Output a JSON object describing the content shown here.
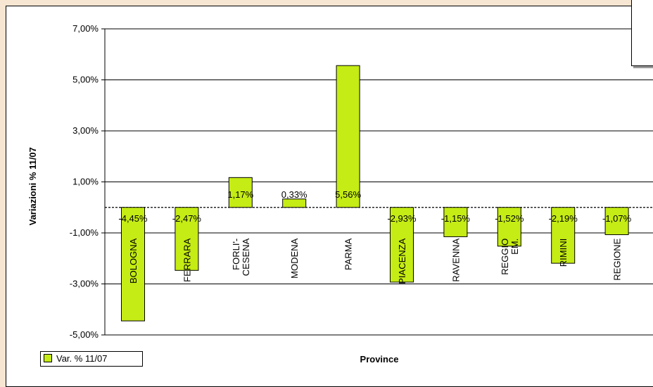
{
  "chart_data": {
    "type": "bar",
    "categories": [
      "BOLOGNA",
      "FERRARA",
      "FORLI'-\nCESENA",
      "MODENA",
      "PARMA",
      "PIACENZA",
      "RAVENNA",
      "REGGIO\nEM.",
      "RIMINI",
      "REGIONE"
    ],
    "series": [
      {
        "name": "Var. % 11/07",
        "values": [
          -4.45,
          -2.47,
          1.17,
          0.33,
          5.56,
          -2.93,
          -1.15,
          -1.52,
          -2.19,
          -1.07
        ],
        "labels": [
          "-4,45%",
          "-2,47%",
          "1,17%",
          "0,33%",
          "5,56%",
          "-2,93%",
          "-1,15%",
          "-1,52%",
          "-2,19%",
          "-1,07%"
        ]
      }
    ],
    "yticks": [
      7,
      5,
      3,
      1,
      -1,
      -3,
      -5
    ],
    "ytick_labels": [
      "7,00%",
      "5,00%",
      "3,00%",
      "1,00%",
      "-1,00%",
      "-3,00%",
      "-5,00%"
    ],
    "ylim": [
      -5,
      7
    ],
    "xlabel": "Province",
    "ylabel": "Variazioni % 11/07",
    "grid": true,
    "legend": "bottom-left",
    "bar_color": "#c5ec14"
  },
  "legend": {
    "label": "Var. % 11/07"
  }
}
